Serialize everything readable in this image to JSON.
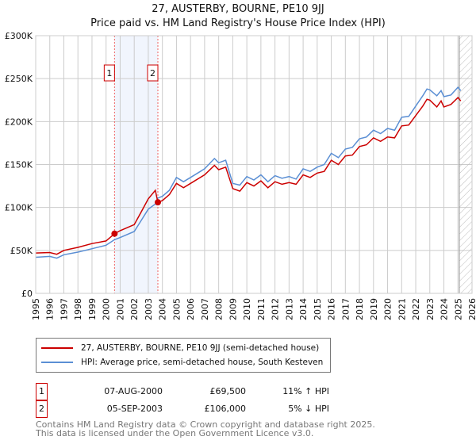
{
  "chart_data": {
    "type": "line",
    "title": "27, AUSTERBY, BOURNE, PE10 9JJ",
    "subtitle": "Price paid vs. HM Land Registry's House Price Index (HPI)",
    "xlim": [
      1995,
      2026
    ],
    "ylim": [
      0,
      300000
    ],
    "x_ticks": [
      "1995",
      "1996",
      "1997",
      "1998",
      "1999",
      "2000",
      "2001",
      "2002",
      "2003",
      "2004",
      "2005",
      "2006",
      "2007",
      "2008",
      "2009",
      "2010",
      "2011",
      "2012",
      "2013",
      "2014",
      "2015",
      "2016",
      "2017",
      "2018",
      "2019",
      "2020",
      "2021",
      "2022",
      "2023",
      "2024",
      "2025",
      "2026"
    ],
    "y_ticks": [
      {
        "v": 0,
        "label": "£0"
      },
      {
        "v": 50000,
        "label": "£50K"
      },
      {
        "v": 100000,
        "label": "£100K"
      },
      {
        "v": 150000,
        "label": "£150K"
      },
      {
        "v": 200000,
        "label": "£200K"
      },
      {
        "v": 250000,
        "label": "£250K"
      },
      {
        "v": 300000,
        "label": "£300K"
      }
    ],
    "grid": true,
    "forecast_hatch_from": 2025.1,
    "series": [
      {
        "name": "27, AUSTERBY, BOURNE, PE10 9JJ (semi-detached house)",
        "color": "#cc0000",
        "x": [
          1995,
          1996,
          1996.5,
          1997,
          1998,
          1999,
          2000,
          2000.6,
          2001,
          2002,
          2002.5,
          2003,
          2003.5,
          2003.68,
          2004,
          2004.5,
          2005,
          2005.5,
          2006,
          2007,
          2007.7,
          2008,
          2008.5,
          2009,
          2009.5,
          2010,
          2010.5,
          2011,
          2011.5,
          2012,
          2012.5,
          2013,
          2013.5,
          2014,
          2014.5,
          2015,
          2015.5,
          2016,
          2016.5,
          2017,
          2017.5,
          2018,
          2018.5,
          2019,
          2019.5,
          2020,
          2020.5,
          2021,
          2021.5,
          2022,
          2022.5,
          2022.8,
          2023,
          2023.5,
          2023.8,
          2024,
          2024.5,
          2025,
          2025.2
        ],
        "y": [
          47000,
          47500,
          45500,
          50000,
          53500,
          58000,
          61000,
          69500,
          73000,
          80000,
          95000,
          110000,
          120000,
          106000,
          108000,
          115000,
          128000,
          123000,
          128000,
          138000,
          149000,
          144000,
          147000,
          122000,
          119000,
          129000,
          125000,
          131000,
          123000,
          130000,
          127000,
          129000,
          127000,
          138000,
          135000,
          140000,
          142000,
          155000,
          150000,
          160000,
          161000,
          171000,
          173000,
          181000,
          177000,
          182000,
          181000,
          195000,
          196000,
          207000,
          218000,
          226000,
          225000,
          217000,
          224000,
          217000,
          220000,
          228000,
          224000
        ]
      },
      {
        "name": "HPI: Average price, semi-detached house, South Kesteven",
        "color": "#5b8fd4",
        "x": [
          1995,
          1996,
          1996.5,
          1997,
          1998,
          1999,
          2000,
          2000.6,
          2001,
          2002,
          2002.5,
          2003,
          2003.5,
          2003.68,
          2004,
          2004.5,
          2005,
          2005.5,
          2006,
          2007,
          2007.7,
          2008,
          2008.5,
          2009,
          2009.5,
          2010,
          2010.5,
          2011,
          2011.5,
          2012,
          2012.5,
          2013,
          2013.5,
          2014,
          2014.5,
          2015,
          2015.5,
          2016,
          2016.5,
          2017,
          2017.5,
          2018,
          2018.5,
          2019,
          2019.5,
          2020,
          2020.5,
          2021,
          2021.5,
          2022,
          2022.5,
          2022.8,
          2023,
          2023.5,
          2023.8,
          2024,
          2024.5,
          2025,
          2025.2
        ],
        "y": [
          42000,
          43000,
          41000,
          45000,
          48000,
          52000,
          56000,
          62500,
          65000,
          72000,
          85000,
          98000,
          104000,
          111000,
          113000,
          120000,
          135000,
          130000,
          135000,
          145000,
          157000,
          152000,
          155000,
          128000,
          126000,
          136000,
          132000,
          138000,
          130000,
          137000,
          134000,
          136000,
          133000,
          145000,
          142000,
          147000,
          150000,
          163000,
          158000,
          168000,
          170000,
          180000,
          182000,
          190000,
          186000,
          192000,
          190000,
          205000,
          206000,
          218000,
          230000,
          238000,
          237000,
          230000,
          236000,
          229000,
          231000,
          240000,
          236000
        ]
      }
    ],
    "annotations": [
      {
        "label": "1",
        "x": 2000.6,
        "y": 69500
      },
      {
        "label": "2",
        "x": 2003.68,
        "y": 106000
      }
    ]
  },
  "legend": {
    "property": "27, AUSTERBY, BOURNE, PE10 9JJ (semi-detached house)",
    "hpi": "HPI: Average price, semi-detached house, South Kesteven"
  },
  "sales": [
    {
      "num": "1",
      "date": "07-AUG-2000",
      "price": "£69,500",
      "hpi": "11% ↑ HPI"
    },
    {
      "num": "2",
      "date": "05-SEP-2003",
      "price": "£106,000",
      "hpi": "5% ↓ HPI"
    }
  ],
  "footer": {
    "line1": "Contains HM Land Registry data © Crown copyright and database right 2025.",
    "line2": "This data is licensed under the Open Government Licence v3.0."
  }
}
